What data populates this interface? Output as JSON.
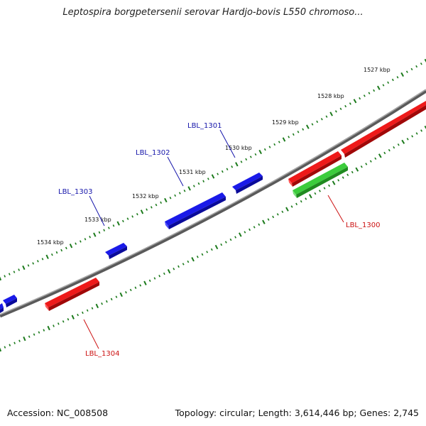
{
  "title": "Leptospira borgpetersenii serovar Hardjo-bovis L550 chromoso...",
  "footer": {
    "accession": "Accession: NC_008508",
    "summary": "Topology: circular; Length: 3,614,446 bp; Genes: 2,745"
  },
  "colors": {
    "backbone": "#7f7f7f",
    "forward_gene": "#1010ee",
    "reverse_gene": "#ee1111",
    "rna_gene": "#33bb33",
    "tick": "#1b7a1b",
    "forward_label": "#1515aa",
    "reverse_label": "#cc1111"
  },
  "scale_labels": [
    "1527 kbp",
    "1528 kbp",
    "1529 kbp",
    "1530 kbp",
    "1531 kbp",
    "1532 kbp",
    "1533 kbp",
    "1534 kbp"
  ],
  "gene_labels": [
    {
      "text": "LBL_1301",
      "strand": "forward"
    },
    {
      "text": "LBL_1302",
      "strand": "forward"
    },
    {
      "text": "LBL_1303",
      "strand": "forward"
    },
    {
      "text": "LBL_1300",
      "strand": "reverse"
    },
    {
      "text": "LBL_1304",
      "strand": "reverse"
    }
  ]
}
